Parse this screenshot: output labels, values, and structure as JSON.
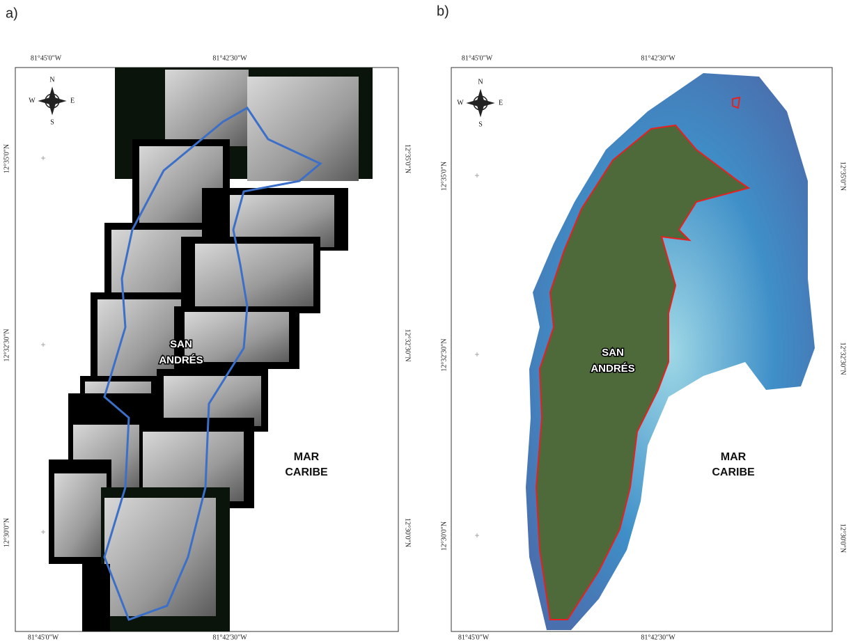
{
  "panels": [
    {
      "label": "a)",
      "top_labels": [
        "81°45'0\"W",
        "81°42'30\"W"
      ],
      "bottom_labels": [
        "81°45'0\"W",
        "81°42'30\"W"
      ],
      "left_labels": [
        "12°35'0\"N",
        "12°32'30\"N",
        "12°30'0\"N"
      ],
      "right_labels": [
        "12°35'0\"N",
        "12°32'30\"N",
        "12°30'0\"N"
      ],
      "compass": {
        "north": "N",
        "south": "S",
        "east": "E",
        "west": "W"
      },
      "place_name": [
        "SAN",
        "ANDRÉS"
      ],
      "sea_name": [
        "MAR",
        "CARIBE"
      ]
    },
    {
      "label": "b)",
      "top_labels": [
        "81°45'0\"W",
        "81°42'30\"W"
      ],
      "bottom_labels": [
        "81°45'0\"W",
        "81°42'30\"W"
      ],
      "left_labels": [
        "12°35'0\"N",
        "12°32'30\"N",
        "12°30'0\"N"
      ],
      "right_labels": [
        "12°35'0\"N",
        "12°32'30\"N",
        "12°30'0\"N"
      ],
      "compass": {
        "north": "N",
        "south": "S",
        "east": "E",
        "west": "W"
      },
      "place_name": [
        "SAN",
        "ANDRÉS"
      ],
      "sea_name": [
        "MAR",
        "CARIBE"
      ]
    }
  ]
}
